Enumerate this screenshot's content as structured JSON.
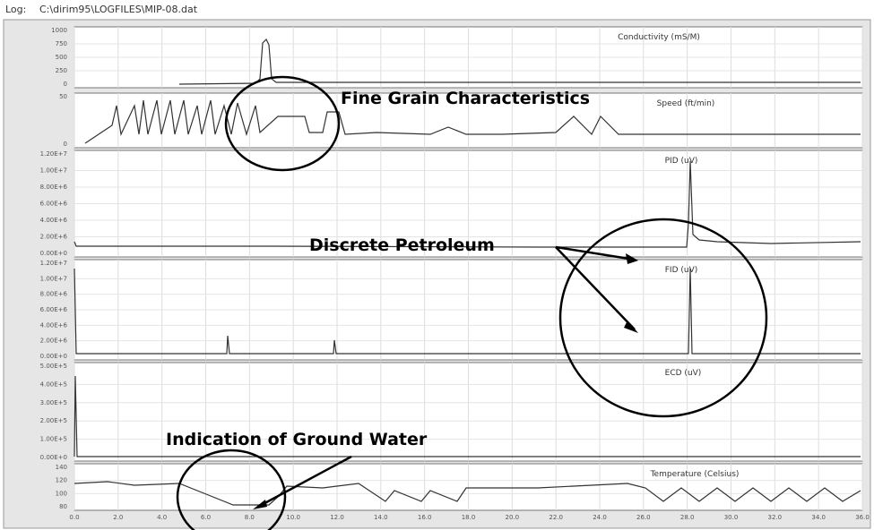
{
  "header": {
    "label": "Log:",
    "path": "C:\\dirim95\\LOGFILES\\MIP-08.dat"
  },
  "panels": [
    {
      "label": "Conductivity (mS/M)",
      "yticks": [
        "1000",
        "750",
        "500",
        "250",
        "0"
      ]
    },
    {
      "label": "Speed (ft/min)",
      "yticks": [
        "50",
        "0"
      ]
    },
    {
      "label": "PID (uV)",
      "yticks": [
        "1.20E+7",
        "1.00E+7",
        "8.00E+6",
        "6.00E+6",
        "4.00E+6",
        "2.00E+6",
        "0.00E+0"
      ]
    },
    {
      "label": "FID (uV)",
      "yticks": [
        "1.20E+7",
        "1.00E+7",
        "8.00E+6",
        "6.00E+6",
        "4.00E+6",
        "2.00E+6",
        "0.00E+0"
      ]
    },
    {
      "label": "ECD (uV)",
      "yticks": [
        "5.00E+5",
        "4.00E+5",
        "3.00E+5",
        "2.00E+5",
        "1.00E+5",
        "0.00E+0"
      ]
    },
    {
      "label": "Temperature (Celsius)",
      "yticks": [
        "140",
        "120",
        "100",
        "80"
      ]
    }
  ],
  "x_axis": {
    "ticks": [
      "0.0",
      "2.0",
      "4.0",
      "6.0",
      "8.0",
      "10.0",
      "12.0",
      "14.0",
      "16.0",
      "18.0",
      "20.0",
      "22.0",
      "24.0",
      "26.0",
      "28.0",
      "30.0",
      "32.0",
      "34.0",
      "36.0"
    ]
  },
  "annotations": {
    "fine_grain": "Fine Grain Characteristics",
    "petroleum": "Discrete Petroleum",
    "ground_water": "Indication of Ground Water"
  }
}
